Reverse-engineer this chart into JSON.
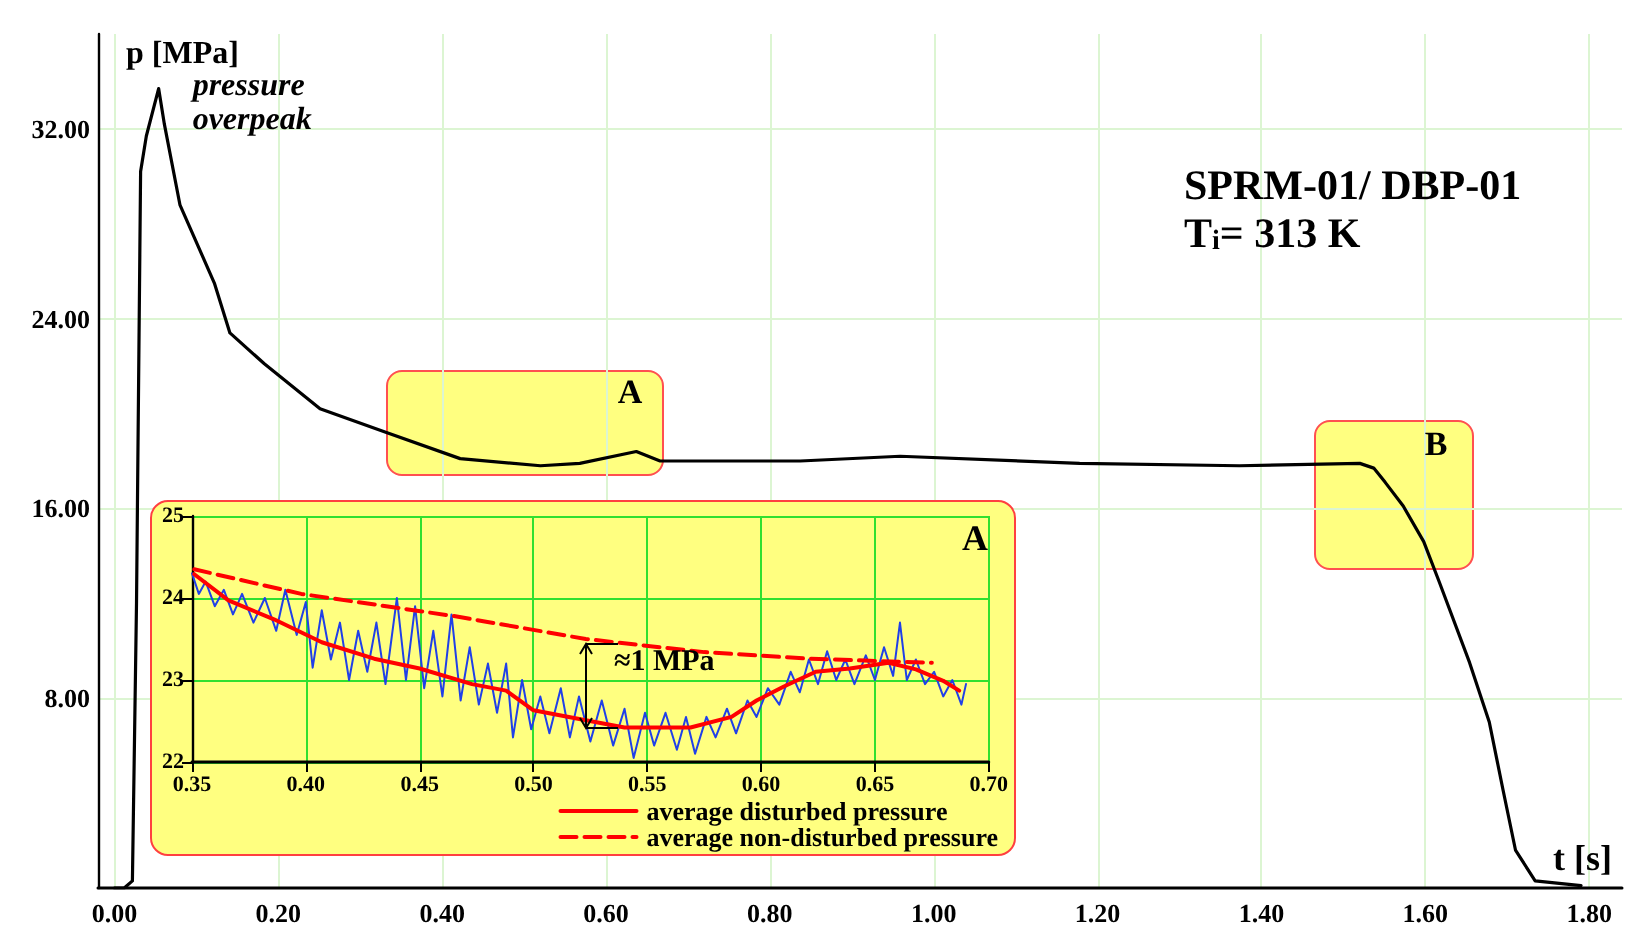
{
  "chart_data": [
    {
      "type": "line",
      "title": "SPRM-01/ DBP-01",
      "subtitle": "T$_{i}$= 313 K",
      "xlabel": "t [s]",
      "ylabel": "p [MPa]",
      "x": [
        0.0,
        0.012,
        0.022,
        0.027,
        0.032,
        0.039,
        0.054,
        0.061,
        0.08,
        0.122,
        0.141,
        0.183,
        0.251,
        0.332,
        0.422,
        0.52,
        0.568,
        0.637,
        0.666,
        0.837,
        0.959,
        1.178,
        1.373,
        1.52,
        1.537,
        1.551,
        1.573,
        1.598,
        1.617,
        1.654,
        1.678,
        1.695,
        1.71,
        1.734,
        1.79
      ],
      "values": [
        0.0,
        0.0,
        0.3,
        12,
        30.2,
        31.7,
        33.7,
        32.2,
        28.8,
        25.5,
        23.4,
        22.1,
        20.2,
        19.2,
        18.1,
        17.8,
        17.9,
        18.4,
        18.0,
        18.0,
        18.2,
        17.9,
        17.8,
        17.9,
        17.7,
        17.1,
        16.1,
        14.6,
        12.9,
        9.5,
        7.0,
        4.1,
        1.6,
        0.3,
        0.1
      ],
      "color": "#000000",
      "marker": "none",
      "line_style": "solid",
      "grid": true,
      "legend": false,
      "xlim": [
        -0.02,
        1.84
      ],
      "ylim": [
        0,
        36
      ],
      "xticks": [
        {
          "value": 0,
          "label": "0.00"
        },
        {
          "value": 0.2,
          "label": "0.20"
        },
        {
          "value": 0.4,
          "label": "0.40"
        },
        {
          "value": 0.6,
          "label": "0.60"
        },
        {
          "value": 0.8,
          "label": "0.80"
        },
        {
          "value": 1.0,
          "label": "1.00"
        },
        {
          "value": 1.2,
          "label": "1.20"
        },
        {
          "value": 1.4,
          "label": "1.40"
        },
        {
          "value": 1.6,
          "label": "1.60"
        },
        {
          "value": 1.8,
          "label": "1.80"
        }
      ],
      "yticks": [
        {
          "value": 8,
          "label": "8.00"
        },
        {
          "value": 16,
          "label": "16.00"
        },
        {
          "value": 24,
          "label": "24.00"
        },
        {
          "value": 32,
          "label": "32.00"
        }
      ],
      "annotations": [
        {
          "text": "pressure overpeak",
          "x": 0.054,
          "y": 33.7
        },
        "A",
        "B"
      ]
    },
    {
      "type": "line",
      "grid": true,
      "legend": "bottom right",
      "marker": "none",
      "xlim": [
        0.35,
        0.7
      ],
      "ylim": [
        22,
        25
      ],
      "xticks": [
        {
          "value": 0.35,
          "label": "0.35"
        },
        {
          "value": 0.4,
          "label": "0.40"
        },
        {
          "value": 0.45,
          "label": "0.45"
        },
        {
          "value": 0.5,
          "label": "0.50"
        },
        {
          "value": 0.55,
          "label": "0.55"
        },
        {
          "value": 0.6,
          "label": "0.60"
        },
        {
          "value": 0.65,
          "label": "0.65"
        },
        {
          "value": 0.7,
          "label": "0.70"
        }
      ],
      "yticks": [
        22,
        23,
        24,
        25
      ],
      "annotations": [
        "A",
        "≈1 MPa"
      ],
      "series": [
        {
          "color": "#2040e8",
          "line_style": "solid",
          "x": [
            0.35,
            0.353,
            0.356,
            0.36,
            0.364,
            0.368,
            0.372,
            0.377,
            0.382,
            0.387,
            0.391,
            0.396,
            0.4,
            0.403,
            0.407,
            0.411,
            0.415,
            0.419,
            0.423,
            0.427,
            0.431,
            0.435,
            0.44,
            0.444,
            0.448,
            0.452,
            0.456,
            0.46,
            0.464,
            0.468,
            0.472,
            0.476,
            0.48,
            0.484,
            0.488,
            0.491,
            0.495,
            0.499,
            0.503,
            0.507,
            0.512,
            0.516,
            0.52,
            0.525,
            0.53,
            0.535,
            0.54,
            0.544,
            0.549,
            0.553,
            0.558,
            0.563,
            0.567,
            0.571,
            0.576,
            0.58,
            0.585,
            0.589,
            0.594,
            0.598,
            0.603,
            0.608,
            0.613,
            0.617,
            0.621,
            0.625,
            0.629,
            0.633,
            0.637,
            0.641,
            0.646,
            0.65,
            0.654,
            0.658,
            0.661,
            0.664,
            0.668,
            0.672,
            0.676,
            0.68,
            0.684,
            0.688,
            0.69
          ],
          "values": [
            24.3,
            24.05,
            24.2,
            23.9,
            24.1,
            23.8,
            24.05,
            23.7,
            24.0,
            23.6,
            24.1,
            23.55,
            23.95,
            23.15,
            23.85,
            23.25,
            23.7,
            23.0,
            23.6,
            23.1,
            23.7,
            22.95,
            24.0,
            23.0,
            23.9,
            22.9,
            23.6,
            22.8,
            23.8,
            22.75,
            23.4,
            22.7,
            23.2,
            22.6,
            23.2,
            22.3,
            23.0,
            22.4,
            22.8,
            22.35,
            22.9,
            22.3,
            22.8,
            22.25,
            22.75,
            22.2,
            22.65,
            22.05,
            22.6,
            22.2,
            22.6,
            22.15,
            22.55,
            22.1,
            22.55,
            22.3,
            22.65,
            22.35,
            22.75,
            22.55,
            22.9,
            22.7,
            23.1,
            22.85,
            23.25,
            22.95,
            23.35,
            23.0,
            23.25,
            22.95,
            23.3,
            23.0,
            23.4,
            23.05,
            23.7,
            23.0,
            23.25,
            22.95,
            23.1,
            22.8,
            23.0,
            22.7,
            22.95
          ]
        },
        {
          "name": "average disturbed pressure",
          "color": "#ff0000",
          "line_style": "solid",
          "x": [
            0.351,
            0.366,
            0.386,
            0.407,
            0.43,
            0.45,
            0.473,
            0.488,
            0.5,
            0.523,
            0.54,
            0.569,
            0.587,
            0.598,
            0.61,
            0.624,
            0.639,
            0.656,
            0.668,
            0.68,
            0.687
          ],
          "values": [
            24.29,
            23.97,
            23.74,
            23.46,
            23.26,
            23.14,
            22.95,
            22.87,
            22.63,
            22.51,
            22.42,
            22.42,
            22.55,
            22.75,
            22.92,
            23.1,
            23.14,
            23.21,
            23.13,
            22.99,
            22.87
          ]
        },
        {
          "name": "average non-disturbed pressure",
          "color": "#ff0000",
          "line_style": "dashed",
          "x": [
            0.351,
            0.398,
            0.465,
            0.523,
            0.575,
            0.621,
            0.675
          ],
          "values": [
            24.35,
            24.05,
            23.78,
            23.5,
            23.34,
            23.26,
            23.21
          ]
        }
      ]
    }
  ]
}
